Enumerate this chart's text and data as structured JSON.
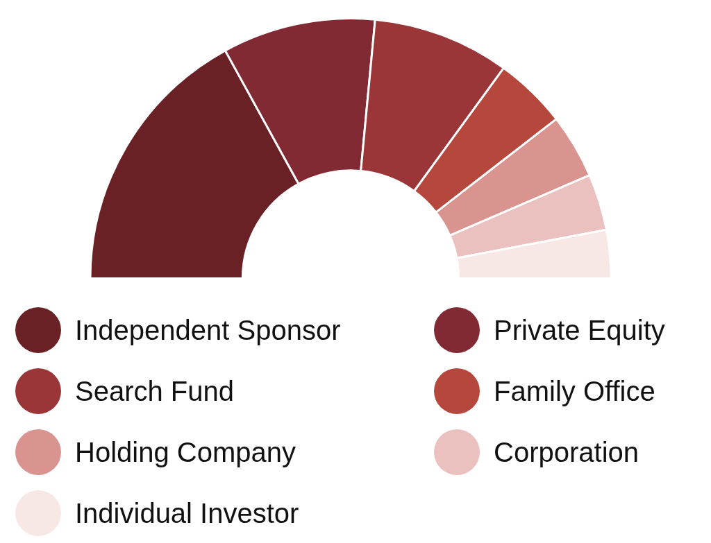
{
  "chart_data": {
    "type": "donut",
    "categories": [
      "Independent Sponsor",
      "Private Equity",
      "Search Fund",
      "Family Office",
      "Holding Company",
      "Corporation",
      "Individual Investor"
    ],
    "values": [
      34,
      19,
      17,
      9,
      8,
      7,
      6
    ],
    "colors": [
      "#6a2126",
      "#822a33",
      "#9a3638",
      "#b5473c",
      "#d99490",
      "#ebc1bf",
      "#f7e7e5"
    ],
    "legend": "bottom"
  }
}
